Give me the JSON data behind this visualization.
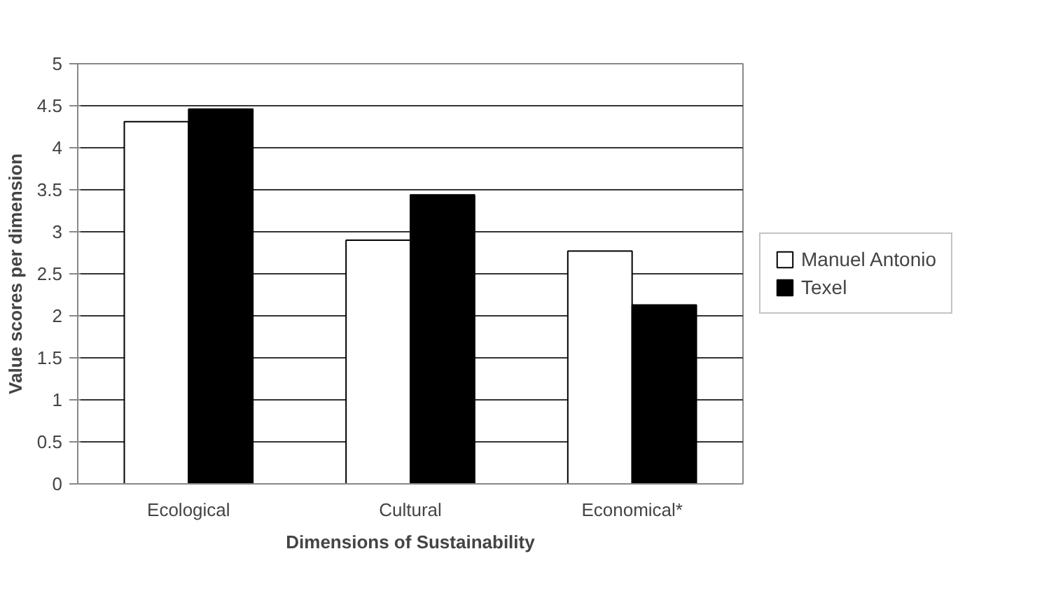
{
  "chart_data": {
    "type": "bar",
    "xlabel": "Dimensions of Sustainability",
    "ylabel": "Value scores per dimension",
    "categories": [
      "Ecological",
      "Cultural",
      "Economical*"
    ],
    "series": [
      {
        "name": "Manuel Antonio",
        "color": "#ffffff",
        "values": [
          4.31,
          2.9,
          2.77
        ]
      },
      {
        "name": "Texel",
        "color": "#000000",
        "values": [
          4.46,
          3.44,
          2.13
        ]
      }
    ],
    "ylim": [
      0,
      5
    ],
    "yticks": [
      0,
      0.5,
      1,
      1.5,
      2,
      2.5,
      3,
      3.5,
      4,
      4.5,
      5
    ],
    "grid": "y",
    "legend": "right"
  }
}
